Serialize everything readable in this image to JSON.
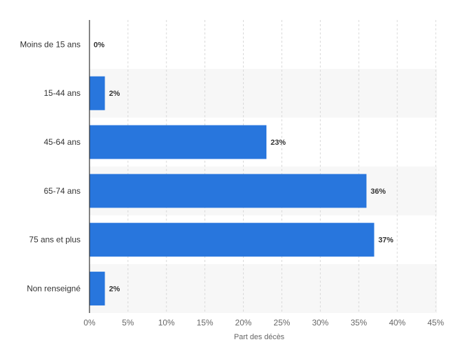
{
  "chart_data": {
    "type": "bar",
    "orientation": "horizontal",
    "categories": [
      "Moins de 15 ans",
      "15-44 ans",
      "45-64 ans",
      "65-74 ans",
      "75 ans et plus",
      "Non renseigné"
    ],
    "values": [
      0,
      2,
      23,
      36,
      37,
      2
    ],
    "data_labels": [
      "0%",
      "2%",
      "23%",
      "36%",
      "37%",
      "2%"
    ],
    "title": "",
    "xlabel": "Part des décès",
    "ylabel": "",
    "xlim": [
      0,
      45
    ],
    "x_ticks": [
      0,
      5,
      10,
      15,
      20,
      25,
      30,
      35,
      40,
      45
    ],
    "x_tick_labels": [
      "0%",
      "5%",
      "10%",
      "15%",
      "20%",
      "25%",
      "30%",
      "35%",
      "40%",
      "45%"
    ],
    "grid": "vertical dashed",
    "legend": "none",
    "bar_color": "#2876dd",
    "band_color": "#f7f7f7"
  }
}
